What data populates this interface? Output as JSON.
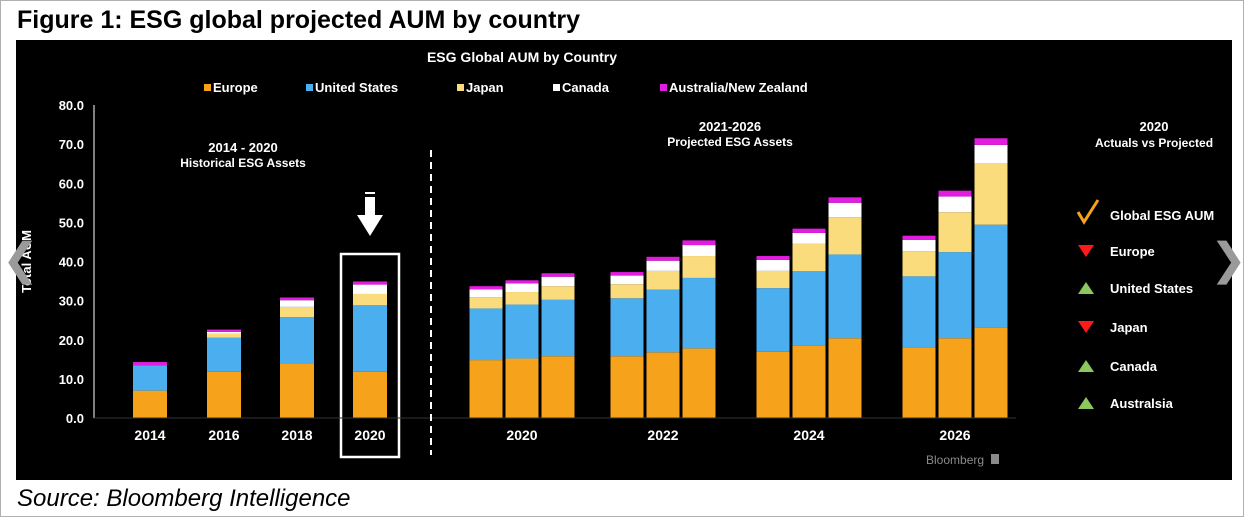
{
  "figure_title": "Figure 1: ESG global projected AUM by country",
  "source": "Source: Bloomberg Intelligence",
  "brand": "Bloomberg",
  "icons": {
    "nav_prev": "chevron-left-icon",
    "nav_next": "chevron-right-icon",
    "highlight": "arrow-down-icon"
  },
  "chart_data": {
    "type": "bar",
    "stacked": true,
    "title": "ESG Global AUM by Country",
    "ylabel": "Total AUM",
    "ylim": [
      0,
      80
    ],
    "yticks": [
      "0.0",
      "10.0",
      "20.0",
      "30.0",
      "40.0",
      "50.0",
      "60.0",
      "70.0",
      "80.0"
    ],
    "legend_position": "top",
    "annotations": {
      "historical": [
        "2014 - 2020",
        "Historical ESG Assets"
      ],
      "projected": [
        "2021-2026",
        "Projected ESG Assets"
      ]
    },
    "groups": [
      {
        "label": "2014",
        "bars": [
          {
            "values": [
              7.0,
              6.5,
              0.0,
              0.0,
              0.8
            ]
          }
        ]
      },
      {
        "label": "2016",
        "bars": [
          {
            "values": [
              11.8,
              8.7,
              1.0,
              0.5,
              0.6
            ]
          }
        ]
      },
      {
        "label": "2018",
        "bars": [
          {
            "values": [
              13.8,
              12.0,
              2.6,
              1.7,
              0.7
            ]
          }
        ]
      },
      {
        "label": "2020",
        "highlight": true,
        "bars": [
          {
            "values": [
              11.8,
              17.0,
              2.9,
              2.4,
              0.8
            ]
          }
        ]
      },
      {
        "label": "2020",
        "bars": [
          {
            "values": [
              14.8,
              13.2,
              2.9,
              2.0,
              0.8
            ]
          },
          {
            "values": [
              15.2,
              13.8,
              3.2,
              2.2,
              0.8
            ]
          },
          {
            "values": [
              15.8,
              14.4,
              3.5,
              2.4,
              0.9
            ]
          }
        ]
      },
      {
        "label": "2022",
        "bars": [
          {
            "values": [
              15.8,
              14.8,
              3.6,
              2.2,
              0.9
            ]
          },
          {
            "values": [
              16.8,
              16.0,
              4.8,
              2.6,
              1.0
            ]
          },
          {
            "values": [
              17.8,
              18.0,
              5.6,
              2.8,
              1.2
            ]
          }
        ]
      },
      {
        "label": "2024",
        "bars": [
          {
            "values": [
              16.9,
              16.3,
              4.4,
              2.8,
              1.0
            ]
          },
          {
            "values": [
              18.5,
              19.0,
              7.0,
              2.8,
              1.1
            ]
          },
          {
            "values": [
              20.4,
              21.4,
              9.5,
              3.7,
              1.4
            ]
          }
        ]
      },
      {
        "label": "2026",
        "bars": [
          {
            "values": [
              18.0,
              18.2,
              6.4,
              2.9,
              1.1
            ]
          },
          {
            "values": [
              20.4,
              22.0,
              10.2,
              4.0,
              1.5
            ]
          },
          {
            "values": [
              23.2,
              26.2,
              15.6,
              4.8,
              1.7
            ]
          }
        ]
      }
    ],
    "series": [
      {
        "name": "Europe",
        "color": "#f7a21b"
      },
      {
        "name": "United States",
        "color": "#4aaeef"
      },
      {
        "name": "Japan",
        "color": "#fbdc7c"
      },
      {
        "name": "Canada",
        "color": "#ffffff"
      },
      {
        "name": "Australia/New Zealand",
        "color": "#e21de0"
      }
    ],
    "actuals_vs_projected": {
      "title": [
        "2020",
        "Actuals vs Projected"
      ],
      "items": [
        {
          "label": "Global ESG AUM",
          "indicator": "check",
          "color": "#f7a21b"
        },
        {
          "label": "Europe",
          "indicator": "down",
          "color": "#ff1a1a"
        },
        {
          "label": "United States",
          "indicator": "up",
          "color": "#8bc860"
        },
        {
          "label": "Japan",
          "indicator": "down",
          "color": "#ff1a1a"
        },
        {
          "label": "Canada",
          "indicator": "up",
          "color": "#8bc860"
        },
        {
          "label": "Australsia",
          "indicator": "up",
          "color": "#8bc860"
        }
      ]
    }
  }
}
